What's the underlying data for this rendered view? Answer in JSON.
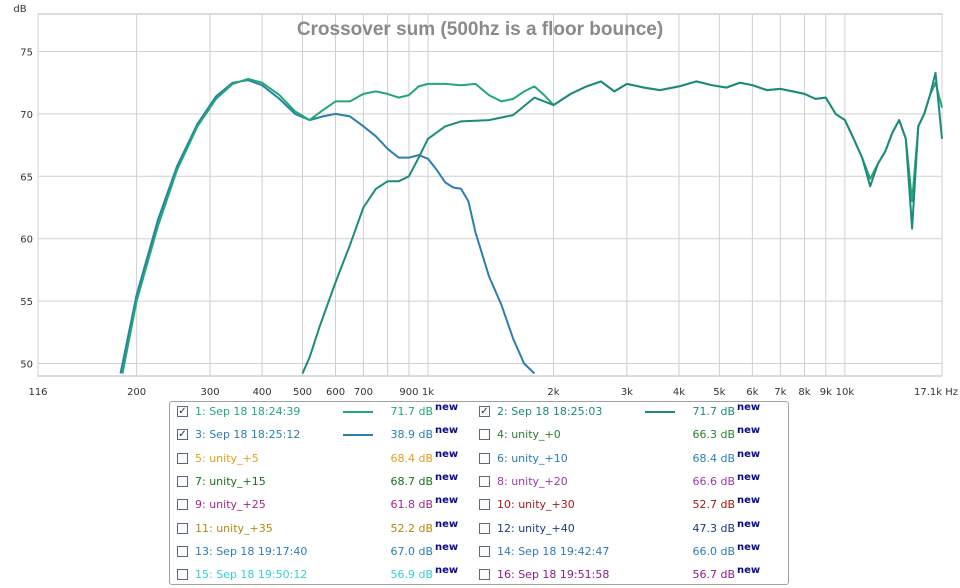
{
  "chart_data": {
    "type": "line",
    "title": "Crossover sum (500hz is a floor bounce)",
    "ylabel": "dB",
    "xlabel": "",
    "x_unit": "Hz",
    "x_scale": "log",
    "xlim": [
      116,
      17100
    ],
    "ylim": [
      49,
      78
    ],
    "grid": true,
    "x_ticks": [
      {
        "value": 116,
        "label": "116"
      },
      {
        "value": 200,
        "label": "200"
      },
      {
        "value": 300,
        "label": "300"
      },
      {
        "value": 400,
        "label": "400"
      },
      {
        "value": 500,
        "label": "500"
      },
      {
        "value": 600,
        "label": "600"
      },
      {
        "value": 700,
        "label": "700"
      },
      {
        "value": 900,
        "label": "900"
      },
      {
        "value": 1000,
        "label": "1k"
      },
      {
        "value": 2000,
        "label": "2k"
      },
      {
        "value": 3000,
        "label": "3k"
      },
      {
        "value": 4000,
        "label": "4k"
      },
      {
        "value": 5000,
        "label": "5k"
      },
      {
        "value": 6000,
        "label": "6k"
      },
      {
        "value": 7000,
        "label": "7k"
      },
      {
        "value": 8000,
        "label": "8k"
      },
      {
        "value": 9000,
        "label": "9k"
      },
      {
        "value": 10000,
        "label": "10k"
      },
      {
        "value": 17100,
        "label": "17.1k Hz"
      }
    ],
    "x_gridlines": [
      116,
      200,
      300,
      400,
      500,
      600,
      700,
      800,
      900,
      1000,
      2000,
      3000,
      4000,
      5000,
      6000,
      7000,
      8000,
      9000,
      10000,
      17100
    ],
    "y_ticks": [
      50,
      55,
      60,
      65,
      70,
      75
    ],
    "series": [
      {
        "name": "1: Sep 18 18:24:39",
        "color": "#22a872",
        "points": [
          [
            185,
            49.2
          ],
          [
            200,
            55
          ],
          [
            225,
            61
          ],
          [
            250,
            65.5
          ],
          [
            280,
            69
          ],
          [
            310,
            71.2
          ],
          [
            340,
            72.4
          ],
          [
            370,
            72.8
          ],
          [
            400,
            72.5
          ],
          [
            440,
            71.5
          ],
          [
            480,
            70.2
          ],
          [
            520,
            69.5
          ],
          [
            560,
            70.3
          ],
          [
            600,
            71
          ],
          [
            650,
            71
          ],
          [
            700,
            71.6
          ],
          [
            750,
            71.8
          ],
          [
            800,
            71.6
          ],
          [
            850,
            71.3
          ],
          [
            900,
            71.5
          ],
          [
            950,
            72.2
          ],
          [
            1000,
            72.4
          ],
          [
            1100,
            72.4
          ],
          [
            1200,
            72.3
          ],
          [
            1300,
            72.4
          ],
          [
            1400,
            71.5
          ],
          [
            1500,
            71
          ],
          [
            1600,
            71.2
          ],
          [
            1700,
            71.8
          ],
          [
            1800,
            72.2
          ],
          [
            1900,
            71.5
          ],
          [
            2000,
            70.7
          ],
          [
            2200,
            71.6
          ],
          [
            2400,
            72.2
          ],
          [
            2600,
            72.6
          ],
          [
            2800,
            71.8
          ],
          [
            3000,
            72.4
          ],
          [
            3300,
            72.1
          ],
          [
            3600,
            71.9
          ],
          [
            4000,
            72.2
          ],
          [
            4400,
            72.6
          ],
          [
            4800,
            72.3
          ],
          [
            5200,
            72.1
          ],
          [
            5600,
            72.5
          ],
          [
            6000,
            72.3
          ],
          [
            6500,
            71.9
          ],
          [
            7000,
            72
          ],
          [
            7500,
            71.8
          ],
          [
            8000,
            71.6
          ],
          [
            8500,
            71.2
          ],
          [
            9000,
            71.3
          ],
          [
            9500,
            70
          ],
          [
            10000,
            69.5
          ],
          [
            10500,
            68
          ],
          [
            11000,
            66.5
          ],
          [
            11500,
            64.8
          ],
          [
            12000,
            66
          ],
          [
            12500,
            67
          ],
          [
            13000,
            68.5
          ],
          [
            13500,
            69.5
          ],
          [
            14000,
            68
          ],
          [
            14500,
            63
          ],
          [
            15000,
            69
          ],
          [
            15500,
            70
          ],
          [
            16000,
            71.5
          ],
          [
            16500,
            72.5
          ],
          [
            17100,
            70.5
          ]
        ]
      },
      {
        "name": "2: Sep 18 18:25:03",
        "color": "#1e8a7e",
        "points": [
          [
            500,
            49.2
          ],
          [
            520,
            50.5
          ],
          [
            550,
            53
          ],
          [
            600,
            56.5
          ],
          [
            650,
            59.5
          ],
          [
            700,
            62.5
          ],
          [
            750,
            64
          ],
          [
            800,
            64.6
          ],
          [
            850,
            64.6
          ],
          [
            900,
            65
          ],
          [
            950,
            66.5
          ],
          [
            1000,
            68
          ],
          [
            1100,
            69
          ],
          [
            1200,
            69.4
          ],
          [
            1400,
            69.5
          ],
          [
            1600,
            69.9
          ],
          [
            1800,
            71.3
          ],
          [
            2000,
            70.7
          ],
          [
            2200,
            71.6
          ],
          [
            2400,
            72.2
          ],
          [
            2600,
            72.6
          ],
          [
            2800,
            71.8
          ],
          [
            3000,
            72.4
          ],
          [
            3300,
            72.1
          ],
          [
            3600,
            71.9
          ],
          [
            4000,
            72.2
          ],
          [
            4400,
            72.6
          ],
          [
            4800,
            72.3
          ],
          [
            5200,
            72.1
          ],
          [
            5600,
            72.5
          ],
          [
            6000,
            72.3
          ],
          [
            6500,
            71.9
          ],
          [
            7000,
            72
          ],
          [
            7500,
            71.8
          ],
          [
            8000,
            71.6
          ],
          [
            8500,
            71.2
          ],
          [
            9000,
            71.3
          ],
          [
            9500,
            70
          ],
          [
            10000,
            69.5
          ],
          [
            10500,
            68
          ],
          [
            11000,
            66.5
          ],
          [
            11500,
            64.2
          ],
          [
            12000,
            66
          ],
          [
            12500,
            67
          ],
          [
            13000,
            68.5
          ],
          [
            13500,
            69.5
          ],
          [
            14000,
            68
          ],
          [
            14500,
            60.8
          ],
          [
            15000,
            69
          ],
          [
            15500,
            70
          ],
          [
            16000,
            71.5
          ],
          [
            16500,
            73.3
          ],
          [
            17100,
            68
          ]
        ]
      },
      {
        "name": "3: Sep 18 18:25:12",
        "color": "#2a7fb0",
        "points": [
          [
            183,
            49.2
          ],
          [
            200,
            55.5
          ],
          [
            225,
            61.5
          ],
          [
            250,
            65.8
          ],
          [
            280,
            69.2
          ],
          [
            310,
            71.4
          ],
          [
            340,
            72.5
          ],
          [
            370,
            72.7
          ],
          [
            400,
            72.3
          ],
          [
            440,
            71.2
          ],
          [
            480,
            70
          ],
          [
            520,
            69.5
          ],
          [
            560,
            69.8
          ],
          [
            600,
            70
          ],
          [
            650,
            69.8
          ],
          [
            700,
            69
          ],
          [
            750,
            68.2
          ],
          [
            800,
            67.2
          ],
          [
            850,
            66.5
          ],
          [
            900,
            66.5
          ],
          [
            950,
            66.7
          ],
          [
            1000,
            66.4
          ],
          [
            1050,
            65.5
          ],
          [
            1100,
            64.5
          ],
          [
            1150,
            64.1
          ],
          [
            1200,
            64
          ],
          [
            1250,
            63
          ],
          [
            1300,
            60.5
          ],
          [
            1400,
            57
          ],
          [
            1500,
            54.7
          ],
          [
            1600,
            52
          ],
          [
            1700,
            50
          ],
          [
            1800,
            49.2
          ]
        ]
      }
    ],
    "legend": [
      {
        "id": 1,
        "label": "1: Sep 18 18:24:39",
        "checked": true,
        "value": "71.7 dB",
        "badge": "new",
        "color": "#22a872",
        "shown": true
      },
      {
        "id": 2,
        "label": "2: Sep 18 18:25:03",
        "checked": true,
        "value": "71.7 dB",
        "badge": "new",
        "color": "#1e8a7e",
        "shown": true
      },
      {
        "id": 3,
        "label": "3: Sep 18 18:25:12",
        "checked": true,
        "value": "38.9 dB",
        "badge": "new",
        "color": "#2a7fb0",
        "shown": true
      },
      {
        "id": 4,
        "label": "4: unity_+0",
        "checked": false,
        "value": "66.3 dB",
        "badge": "new",
        "color": "#2e7d32",
        "shown": false
      },
      {
        "id": 5,
        "label": "5: unity_+5",
        "checked": false,
        "value": "68.4 dB",
        "badge": "new",
        "color": "#e0a020",
        "shown": false
      },
      {
        "id": 6,
        "label": "6: unity_+10",
        "checked": false,
        "value": "68.4 dB",
        "badge": "new",
        "color": "#2a7fb0",
        "shown": false
      },
      {
        "id": 7,
        "label": "7: unity_+15",
        "checked": false,
        "value": "68.7 dB",
        "badge": "new",
        "color": "#1b6e1b",
        "shown": false
      },
      {
        "id": 8,
        "label": "8: unity_+20",
        "checked": false,
        "value": "66.6 dB",
        "badge": "new",
        "color": "#9c3aa8",
        "shown": false
      },
      {
        "id": 9,
        "label": "9: unity_+25",
        "checked": false,
        "value": "61.8 dB",
        "badge": "new",
        "color": "#9c2a8a",
        "shown": false
      },
      {
        "id": 10,
        "label": "10: unity_+30",
        "checked": false,
        "value": "52.7 dB",
        "badge": "new",
        "color": "#a01a1a",
        "shown": false
      },
      {
        "id": 11,
        "label": "11: unity_+35",
        "checked": false,
        "value": "52.2 dB",
        "badge": "new",
        "color": "#b08a10",
        "shown": false
      },
      {
        "id": 12,
        "label": "12: unity_+40",
        "checked": false,
        "value": "47.3 dB",
        "badge": "new",
        "color": "#1a3a80",
        "shown": false
      },
      {
        "id": 13,
        "label": "13: Sep 18 19:17:40",
        "checked": false,
        "value": "67.0 dB",
        "badge": "new",
        "color": "#2a7fb0",
        "shown": false
      },
      {
        "id": 14,
        "label": "14: Sep 18 19:42:47",
        "checked": false,
        "value": "66.0 dB",
        "badge": "new",
        "color": "#2a7fb0",
        "shown": false
      },
      {
        "id": 15,
        "label": "15: Sep 18 19:50:12",
        "checked": false,
        "value": "56.9 dB",
        "badge": "new",
        "color": "#33d0d8",
        "shown": false
      },
      {
        "id": 16,
        "label": "16: Sep 18 19:51:58",
        "checked": false,
        "value": "56.7 dB",
        "badge": "new",
        "color": "#8c1a8c",
        "shown": false
      }
    ]
  }
}
